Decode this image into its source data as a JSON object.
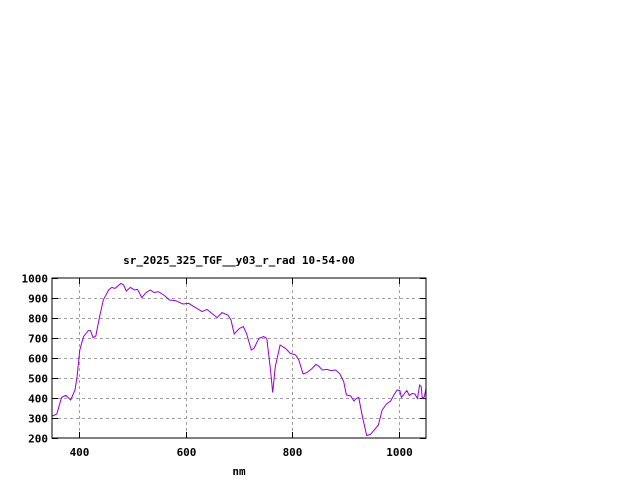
{
  "chart_data": {
    "type": "line",
    "title": "sr_2025_325_TGF__y03_r_rad 10-54-00",
    "xlabel": "nm",
    "ylabel": "",
    "xlim": [
      350,
      1050
    ],
    "ylim": [
      200,
      1000
    ],
    "xticks": [
      400,
      600,
      800,
      1000
    ],
    "yticks": [
      200,
      300,
      400,
      500,
      600,
      700,
      800,
      900,
      1000
    ],
    "grid": true,
    "line_color": "#9400d3",
    "series": [
      {
        "x": [
          351,
          359,
          368,
          376,
          385,
          393,
          397,
          402,
          409,
          418,
          422,
          427,
          432,
          439,
          446,
          456,
          462,
          468,
          479,
          484,
          489,
          497,
          504,
          510,
          518,
          526,
          534,
          541,
          549,
          559,
          570,
          581,
          595,
          606,
          618,
          631,
          640,
          649,
          659,
          668,
          679,
          685,
          691,
          701,
          708,
          714,
          723,
          728,
          737,
          746,
          752,
          759,
          763,
          768,
          777,
          787,
          796,
          806,
          812,
          820,
          827,
          837,
          844,
          849,
          856,
          865,
          872,
          881,
          889,
          896,
          901,
          909,
          915,
          920,
          924,
          931,
          939,
          946,
          954,
          961,
          968,
          976,
          984,
          990,
          996,
          1001,
          1004,
          1009,
          1014,
          1019,
          1024,
          1029,
          1034,
          1038,
          1041,
          1043,
          1047,
          1050
        ],
        "y": [
          310,
          320,
          403,
          413,
          390,
          440,
          507,
          640,
          707,
          737,
          737,
          702,
          710,
          807,
          890,
          940,
          953,
          948,
          973,
          965,
          935,
          953,
          940,
          943,
          902,
          927,
          940,
          927,
          932,
          915,
          890,
          887,
          870,
          873,
          853,
          832,
          843,
          823,
          802,
          827,
          815,
          790,
          720,
          748,
          757,
          723,
          640,
          648,
          698,
          707,
          698,
          540,
          427,
          557,
          665,
          648,
          623,
          615,
          590,
          520,
          527,
          548,
          568,
          560,
          540,
          543,
          537,
          540,
          520,
          482,
          415,
          410,
          385,
          398,
          403,
          307,
          212,
          218,
          243,
          265,
          340,
          370,
          385,
          415,
          440,
          437,
          403,
          420,
          437,
          412,
          423,
          420,
          398,
          465,
          457,
          398,
          407,
          448
        ]
      }
    ]
  }
}
